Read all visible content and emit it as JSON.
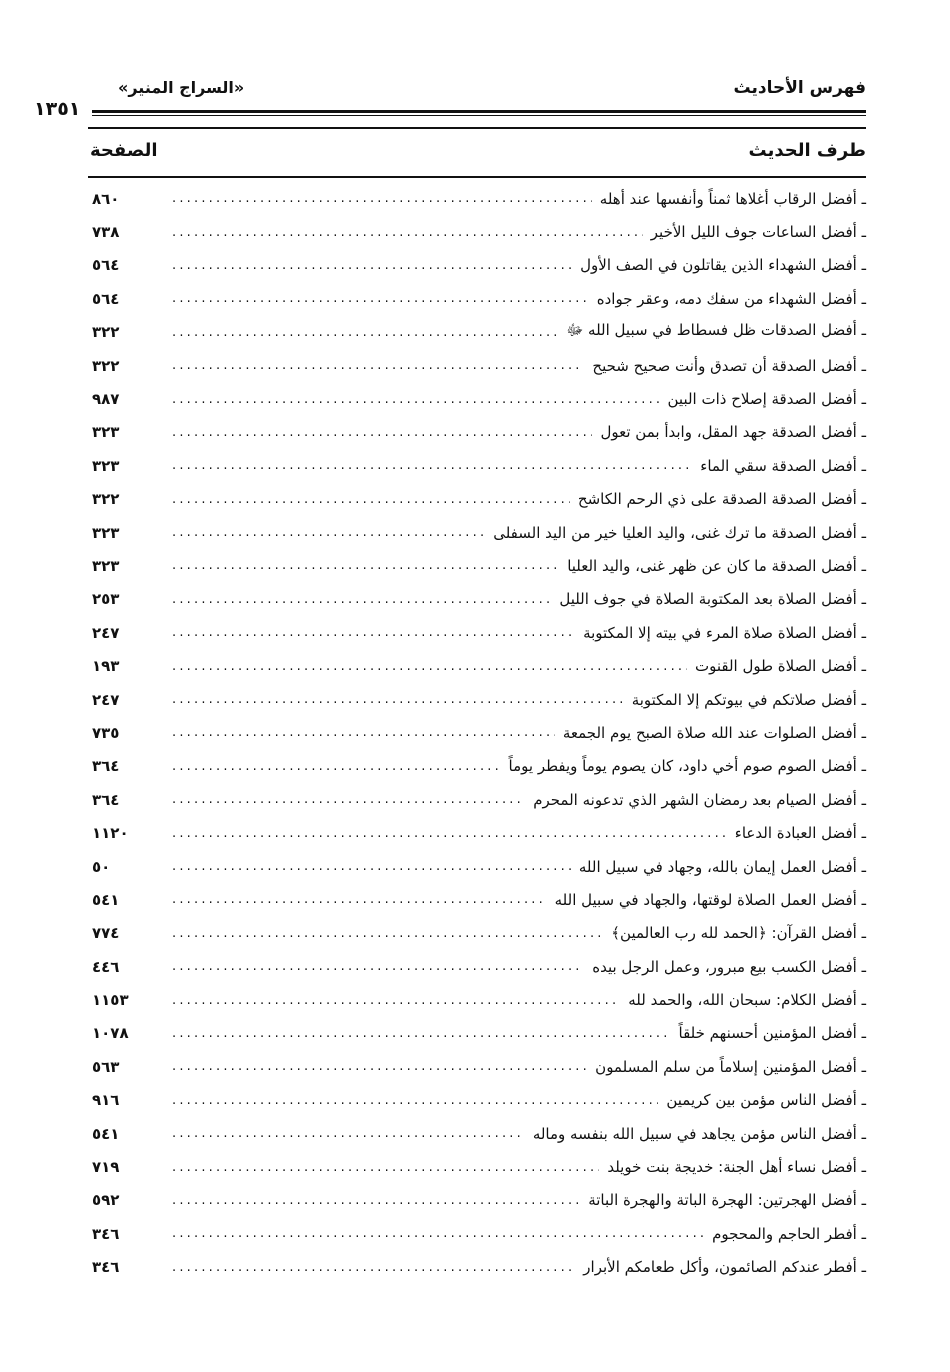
{
  "header": {
    "section_title": "فهرس الأحاديث",
    "book_title": "«السراج المنير»",
    "page_number": "١٣٥١"
  },
  "columns": {
    "hadith": "طرف الحديث",
    "page": "الصفحة"
  },
  "entries": [
    {
      "text": "ـ أفضل الرقاب أغلاها ثمناً وأنفسها عند أهله",
      "page": "٨٦٠"
    },
    {
      "text": "ـ أفضل الساعات جوف الليل الأخير",
      "page": "٧٣٨"
    },
    {
      "text": "ـ أفضل الشهداء الذين يقاتلون في الصف الأول",
      "page": "٥٦٤"
    },
    {
      "text": "ـ أفضل الشهداء من سفك دمه، وعقر جواده",
      "page": "٥٦٤"
    },
    {
      "text": "ـ أفضل الصدقات ظل فسطاط في سبيل الله ﷻ",
      "page": "٣٢٢"
    },
    {
      "text": "ـ أفضل الصدقة أن تصدق وأنت صحيح شحيح",
      "page": "٣٢٢"
    },
    {
      "text": "ـ أفضل الصدقة إصلاح ذات البين",
      "page": "٩٨٧"
    },
    {
      "text": "ـ أفضل الصدقة جهد المقل، وابدأ بمن تعول",
      "page": "٣٢٣"
    },
    {
      "text": "ـ أفضل الصدقة سقي الماء",
      "page": "٣٢٣"
    },
    {
      "text": "ـ أفضل الصدقة الصدقة على ذي الرحم الكاشح",
      "page": "٣٢٢"
    },
    {
      "text": "ـ أفضل الصدقة ما ترك غنى، واليد العليا خير من اليد السفلى",
      "page": "٣٢٣"
    },
    {
      "text": "ـ أفضل الصدقة ما كان عن ظهر غنى، واليد العليا",
      "page": "٣٢٣"
    },
    {
      "text": "ـ أفضل الصلاة بعد المكتوبة الصلاة في جوف الليل",
      "page": "٢٥٣"
    },
    {
      "text": "ـ أفضل الصلاة صلاة المرء في بيته إلا المكتوبة",
      "page": "٢٤٧"
    },
    {
      "text": "ـ أفضل الصلاة طول القنوت",
      "page": "١٩٣"
    },
    {
      "text": "ـ أفضل صلاتكم في بيوتكم إلا المكتوبة",
      "page": "٢٤٧"
    },
    {
      "text": "ـ أفضل الصلوات عند الله صلاة الصبح يوم الجمعة",
      "page": "٧٣٥"
    },
    {
      "text": "ـ أفضل الصوم صوم أخي داود، كان يصوم يوماً ويفطر يوماً",
      "page": "٣٦٤"
    },
    {
      "text": "ـ أفضل الصيام بعد رمضان الشهر الذي تدعونه المحرم",
      "page": "٣٦٤"
    },
    {
      "text": "ـ أفضل العبادة الدعاء",
      "page": "١١٢٠"
    },
    {
      "text": "ـ أفضل العمل إيمان بالله، وجهاد في سبيل الله",
      "page": "٥٠"
    },
    {
      "text": "ـ أفضل العمل الصلاة لوقتها، والجهاد في سبيل الله",
      "page": "٥٤١"
    },
    {
      "text": "ـ أفضل القرآن: ﴿الحمد لله رب العالمين﴾",
      "page": "٧٧٤"
    },
    {
      "text": "ـ أفضل الكسب بيع مبرور، وعمل الرجل بيده",
      "page": "٤٤٦"
    },
    {
      "text": "ـ أفضل الكلام: سبحان الله، والحمد لله",
      "page": "١١٥٣"
    },
    {
      "text": "ـ أفضل المؤمنين أحسنهم خلقاً",
      "page": "١٠٧٨"
    },
    {
      "text": "ـ أفضل المؤمنين إسلاماً من سلم المسلمون",
      "page": "٥٦٣"
    },
    {
      "text": "ـ أفضل الناس مؤمن بين كريمين",
      "page": "٩١٦"
    },
    {
      "text": "ـ أفضل الناس مؤمن يجاهد في سبيل الله بنفسه وماله",
      "page": "٥٤١"
    },
    {
      "text": "ـ أفضل نساء أهل الجنة: خديجة بنت خويلد",
      "page": "٧١٩"
    },
    {
      "text": "ـ أفضل الهجرتين: الهجرة الباتة والهجرة الباتة",
      "page": "٥٩٢"
    },
    {
      "text": "ـ أفطر الحاجم والمحجوم",
      "page": "٣٤٦"
    },
    {
      "text": "ـ أفطر عندكم الصائمون، وأكل طعامكم الأبرار",
      "page": "٣٤٦"
    }
  ]
}
